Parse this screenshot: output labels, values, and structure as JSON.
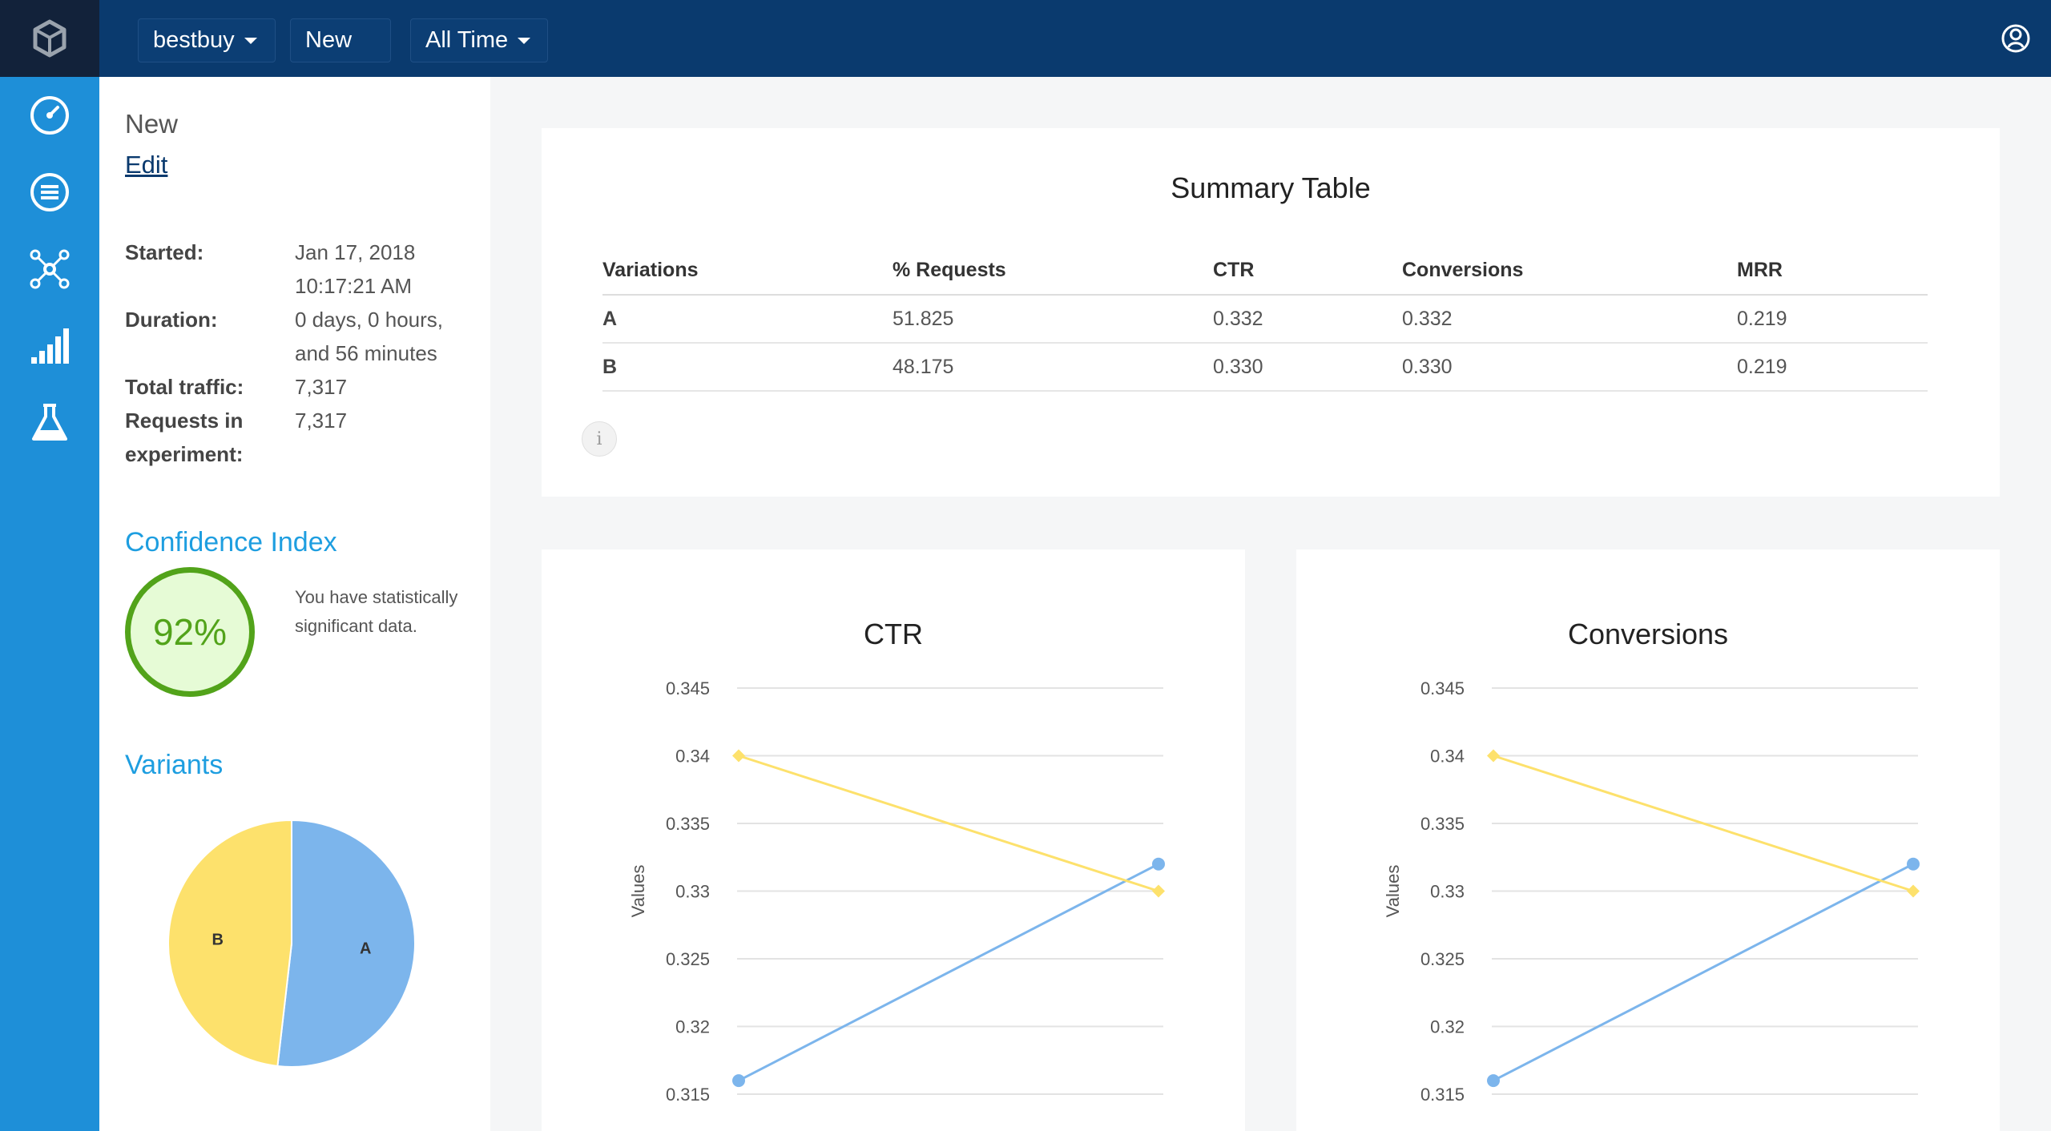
{
  "topbar": {
    "logo_icon": "cube-logo-icon",
    "project_label": "bestbuy",
    "experiment_label": "New",
    "range_label": "All Time",
    "user_icon": "user-circle-icon"
  },
  "nav": {
    "items": [
      {
        "icon": "dashboard-gauge-icon"
      },
      {
        "icon": "list-icon"
      },
      {
        "icon": "network-icon"
      },
      {
        "icon": "signal-bars-icon"
      },
      {
        "icon": "flask-icon"
      }
    ]
  },
  "info": {
    "name": "New",
    "edit_label": "Edit",
    "started_label": "Started:",
    "started_date": "Jan 17, 2018",
    "started_time": "10:17:21 AM",
    "duration_label": "Duration:",
    "duration_line1": "0 days, 0 hours,",
    "duration_line2": "and 56 minutes",
    "traffic_label": "Total traffic:",
    "traffic_value": "7,317",
    "requests_label_1": "Requests in",
    "requests_label_2": "experiment:",
    "requests_value": "7,317"
  },
  "confidence": {
    "title": "Confidence Index",
    "value": "92%",
    "message_1": "You have statistically",
    "message_2": "significant data."
  },
  "variants": {
    "title": "Variants",
    "chart_colors": {
      "A": "#7cb5ec",
      "B": "#fde16c"
    }
  },
  "summary": {
    "title": "Summary Table",
    "headers": [
      "Variations",
      "% Requests",
      "CTR",
      "Conversions",
      "MRR"
    ],
    "rows": [
      [
        "A",
        "51.825",
        "0.332",
        "0.332",
        "0.219"
      ],
      [
        "B",
        "48.175",
        "0.330",
        "0.330",
        "0.219"
      ]
    ],
    "info_icon": "info-icon"
  },
  "chart_data": [
    {
      "type": "pie",
      "labels": [
        "A",
        "B"
      ],
      "values": [
        51.825,
        48.175
      ],
      "colors": [
        "#7cb5ec",
        "#fde16c"
      ]
    },
    {
      "type": "line",
      "title": "CTR",
      "ylabel": "Values",
      "ylim": [
        0.315,
        0.345
      ],
      "yticks": [
        "0.345",
        "0.34",
        "0.335",
        "0.33",
        "0.325",
        "0.32",
        "0.315"
      ],
      "grid": true,
      "series": [
        {
          "values": [
            0.316,
            0.332
          ],
          "color": "#7cb5ec",
          "marker": "circle"
        },
        {
          "values": [
            0.34,
            0.33
          ],
          "color": "#fde16c",
          "marker": "diamond"
        }
      ]
    },
    {
      "type": "line",
      "title": "Conversions",
      "ylabel": "Values",
      "ylim": [
        0.315,
        0.345
      ],
      "yticks": [
        "0.345",
        "0.34",
        "0.335",
        "0.33",
        "0.325",
        "0.32",
        "0.315"
      ],
      "grid": true,
      "series": [
        {
          "values": [
            0.316,
            0.332
          ],
          "color": "#7cb5ec",
          "marker": "circle"
        },
        {
          "values": [
            0.34,
            0.33
          ],
          "color": "#fde16c",
          "marker": "diamond"
        }
      ]
    }
  ]
}
